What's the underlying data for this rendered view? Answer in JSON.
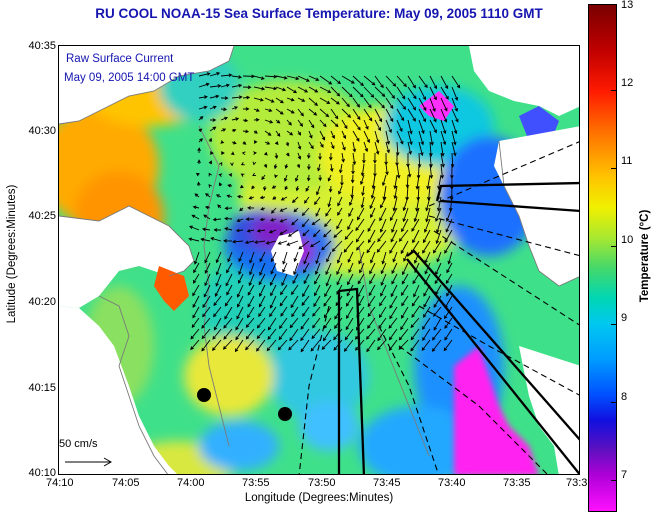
{
  "title": "RU COOL  NOAA-15  Sea Surface Temperature:  May 09, 2005 1110 GMT",
  "legend": {
    "current_label": "Raw Surface Current",
    "current_time": "May 09, 2005 14:00 GMT",
    "scale_label": "50 cm/s"
  },
  "axes": {
    "x_title": "Longitude (Degrees:Minutes)",
    "y_title": "Latitude (Degrees:Minutes)",
    "x_ticks": [
      "74:10",
      "74:05",
      "74:00",
      "73:55",
      "73:50",
      "73:45",
      "73:40",
      "73:35",
      "73:3"
    ],
    "y_ticks": [
      "40:35",
      "40:30",
      "40:25",
      "40:20",
      "40:15",
      "40:10"
    ]
  },
  "colorbar": {
    "title": "Temperature (°C)",
    "labels": [
      "13",
      "12",
      "11",
      "10",
      "9",
      "8",
      "7"
    ]
  },
  "colors": {
    "title": "#1515b0",
    "land": "#ffffff",
    "arrows": "#000000"
  }
}
